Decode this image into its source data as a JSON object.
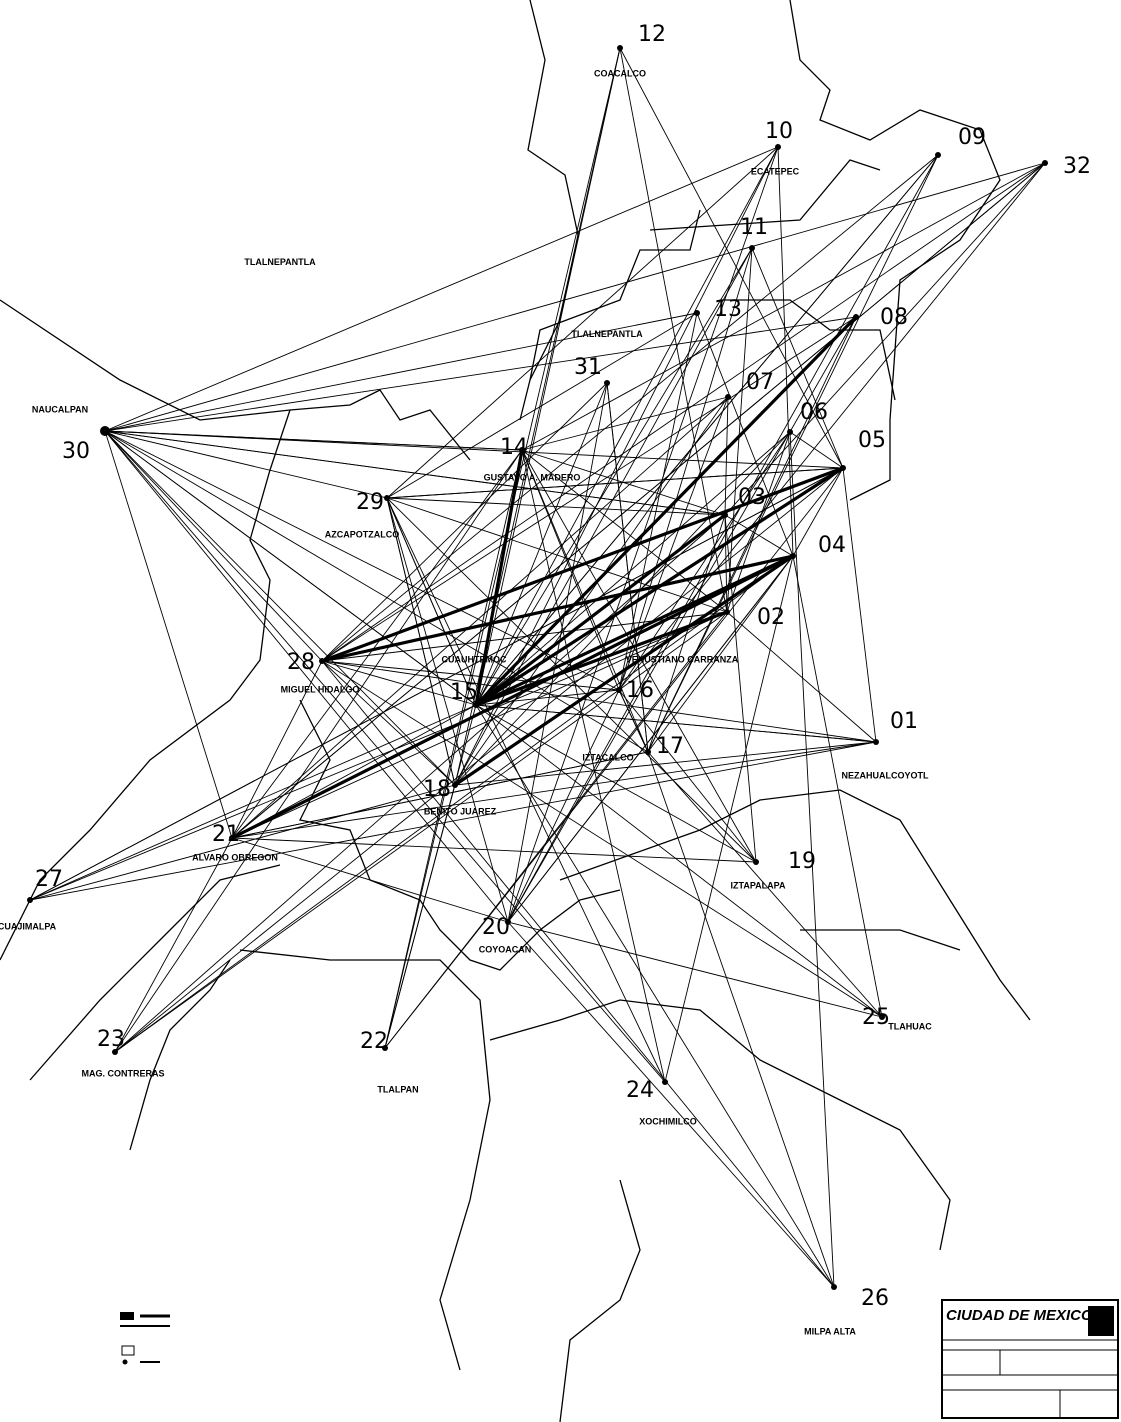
{
  "title_block": {
    "title": "CIUDAD DE MEXICO"
  },
  "place_labels": [
    "TLALNEPANTLA",
    "TLALNEPANTLA"
  ],
  "nodes": [
    {
      "id": "12",
      "name": "COACALCO"
    },
    {
      "id": "10",
      "name": "ECATEPEC"
    },
    {
      "id": "09"
    },
    {
      "id": "32"
    },
    {
      "id": "11"
    },
    {
      "id": "13"
    },
    {
      "id": "31"
    },
    {
      "id": "07"
    },
    {
      "id": "06"
    },
    {
      "id": "05"
    },
    {
      "id": "08"
    },
    {
      "id": "14",
      "name": "GUSTAVO A. MADERO"
    },
    {
      "id": "29",
      "name": "AZCAPOTZALCO"
    },
    {
      "id": "03"
    },
    {
      "id": "04"
    },
    {
      "id": "02"
    },
    {
      "id": "28",
      "name": "MIGUEL HIDALGO"
    },
    {
      "id": "15",
      "name": "CUAUHTEMOC"
    },
    {
      "id": "16",
      "name": "VENUSTIANO CARRANZA"
    },
    {
      "id": "17",
      "name": "IZTACALCO"
    },
    {
      "id": "01",
      "name": "NEZAHUALCOYOTL"
    },
    {
      "id": "18",
      "name": "BENITO JUAREZ"
    },
    {
      "id": "21",
      "name": "ALVARO OBREGON"
    },
    {
      "id": "19",
      "name": "IZTAPALAPA"
    },
    {
      "id": "27",
      "name": "CUAJIMALPA"
    },
    {
      "id": "20",
      "name": "COYOACAN"
    },
    {
      "id": "25",
      "name": "TLAHUAC"
    },
    {
      "id": "23",
      "name": "MAG. CONTRERAS"
    },
    {
      "id": "22",
      "name": "TLALPAN"
    },
    {
      "id": "24",
      "name": "XOCHIMILCO"
    },
    {
      "id": "26",
      "name": "MILPA ALTA"
    },
    {
      "id": "30",
      "name": "NAUCALPAN"
    }
  ]
}
